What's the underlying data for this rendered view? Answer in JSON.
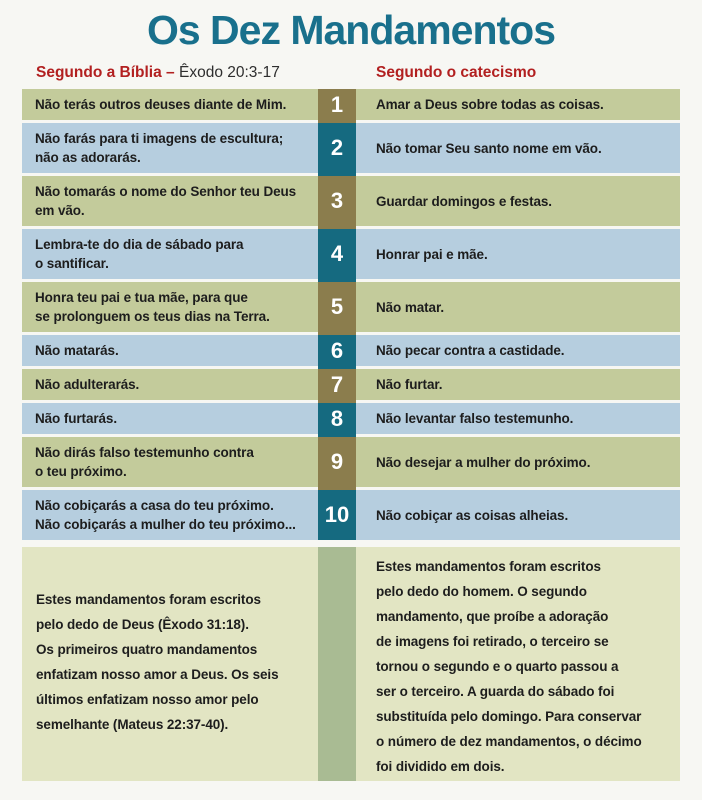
{
  "title": "Os Dez Mandamentos",
  "headers": {
    "left_label": "Segundo a Bíblia",
    "separator": "–",
    "left_reference": "Êxodo 20:3-17",
    "right_label": "Segundo o catecismo"
  },
  "commandments": [
    {
      "num": "1",
      "bible": "Não terás outros deuses diante de Mim.",
      "catechism": "Amar a Deus sobre todas as coisas."
    },
    {
      "num": "2",
      "bible": "Não farás para ti imagens de escultura;\nnão as adorarás.",
      "catechism": "Não tomar Seu santo nome em vão."
    },
    {
      "num": "3",
      "bible": "Não tomarás o nome do Senhor teu Deus\nem vão.",
      "catechism": "Guardar domingos e festas."
    },
    {
      "num": "4",
      "bible": "Lembra-te do dia de sábado para\no santificar.",
      "catechism": "Honrar pai e mãe."
    },
    {
      "num": "5",
      "bible": "Honra teu pai e tua mãe, para que\nse prolonguem os teus dias na Terra.",
      "catechism": "Não matar."
    },
    {
      "num": "6",
      "bible": "Não matarás.",
      "catechism": "Não pecar contra a castidade."
    },
    {
      "num": "7",
      "bible": "Não adulterarás.",
      "catechism": "Não furtar."
    },
    {
      "num": "8",
      "bible": "Não furtarás.",
      "catechism": "Não levantar falso testemunho."
    },
    {
      "num": "9",
      "bible": "Não dirás falso testemunho contra\no teu próximo.",
      "catechism": "Não desejar a mulher do próximo."
    },
    {
      "num": "10",
      "bible": "Não cobiçarás a casa do teu próximo.\nNão cobiçarás a mulher do teu próximo...",
      "catechism": "Não cobiçar as coisas alheias."
    }
  ],
  "footers": {
    "bible_note": "Estes mandamentos foram escritos\npelo dedo de Deus (Êxodo 31:18).\nOs primeiros quatro mandamentos\nenfatizam nosso amor a Deus. Os seis\núltimos enfatizam nosso amor pelo\nsemelhante (Mateus 22:37-40).",
    "catechism_note": "Estes mandamentos foram escritos\npelo dedo do homem. O segundo\nmandamento, que proíbe a adoração\nde imagens foi retirado, o terceiro se\ntornou o segundo e o quarto passou a\nser o terceiro. A guarda do sábado foi\nsubstituída pelo domingo. Para conservar\no número de dez mandamentos, o décimo\nfoi dividido em dois."
  },
  "colors": {
    "title_teal": "#19708c",
    "header_red": "#b22020",
    "row_olive": "#c3cb9b",
    "row_blue": "#b6cedf",
    "num_brown": "#8b7d4d",
    "num_teal": "#156a80",
    "footer_pale_green": "#e2e5c3",
    "footer_strip_green": "#a9bb93",
    "text_dark": "#1d1d1d",
    "page_background": "#f7f7f3"
  }
}
